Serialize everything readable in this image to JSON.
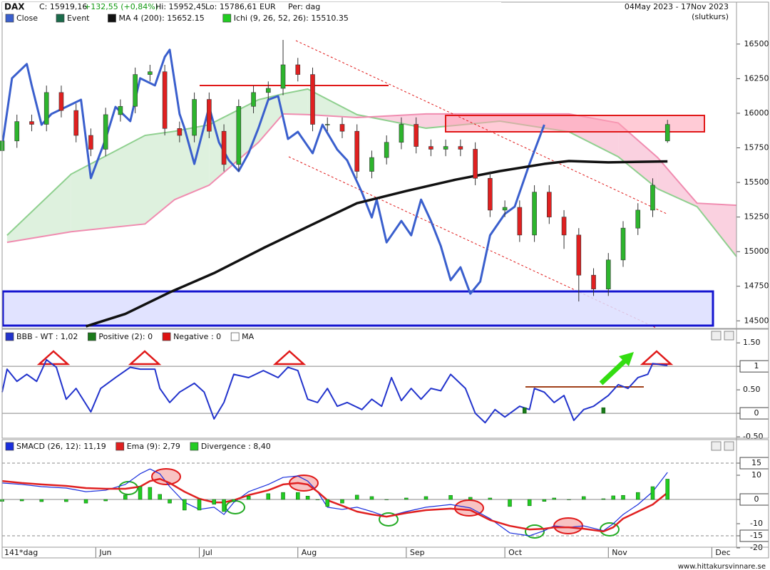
{
  "header": {
    "symbol": "DAX",
    "close": "C: 15919,16",
    "change": "+132,55 (+0,84%)",
    "high": "Hi: 15952,45",
    "low": "Lo: 15786,61",
    "currency": "EUR",
    "period": "Per: dag",
    "date_range": "04May 2023 - 17Nov 2023",
    "price_type": "(slutkurs)"
  },
  "footer": "www.hittakursvinnare.se",
  "chart_data": [
    {
      "type": "candlestick",
      "xlim": [
        0,
        149
      ],
      "ylim": [
        14450,
        16700
      ],
      "yticks": [
        14500,
        14750,
        15000,
        15250,
        15500,
        15750,
        16000,
        16250,
        16500
      ],
      "candles": {
        "up_color": "#2db52d",
        "down_color": "#e02020",
        "x": [
          0,
          3,
          6,
          9,
          12,
          15,
          18,
          21,
          24,
          27,
          30,
          33,
          36,
          39,
          42,
          45,
          48,
          51,
          54,
          57,
          60,
          63,
          66,
          69,
          72,
          75,
          78,
          81,
          84,
          87,
          90,
          93,
          96,
          99,
          102,
          105,
          108,
          111,
          114,
          117,
          120,
          123,
          126,
          129,
          132,
          135
        ],
        "open": [
          15730,
          15800,
          15940,
          15920,
          16150,
          16020,
          15840,
          15740,
          15990,
          16050,
          16280,
          16300,
          15890,
          15840,
          16100,
          15870,
          15630,
          16050,
          16150,
          16180,
          16350,
          16280,
          15920,
          15920,
          15870,
          15580,
          15680,
          15790,
          15920,
          15760,
          15740,
          15760,
          15740,
          15530,
          15300,
          15320,
          15120,
          15430,
          15250,
          15120,
          14830,
          14730,
          14940,
          15170,
          15300,
          15800
        ],
        "high": [
          15850,
          15990,
          15990,
          16200,
          16200,
          16070,
          15890,
          16040,
          16100,
          16330,
          16350,
          16350,
          15940,
          16150,
          16150,
          15920,
          16100,
          16200,
          16230,
          16530,
          16400,
          16330,
          15970,
          15970,
          15920,
          15730,
          15840,
          15970,
          15970,
          15810,
          15810,
          15810,
          15790,
          15580,
          15370,
          15370,
          15480,
          15480,
          15300,
          15170,
          14880,
          14990,
          15220,
          15350,
          15530,
          15952.45
        ],
        "low": [
          15680,
          15750,
          15870,
          15870,
          15970,
          15790,
          15690,
          15690,
          15940,
          16000,
          16230,
          15840,
          15790,
          15790,
          15820,
          15580,
          15580,
          16000,
          16100,
          16130,
          16230,
          15870,
          15870,
          15820,
          15530,
          15530,
          15630,
          15740,
          15710,
          15690,
          15690,
          15690,
          15480,
          15250,
          15250,
          15070,
          15070,
          15200,
          15020,
          14640,
          14680,
          14680,
          14890,
          15120,
          15250,
          15786.61
        ],
        "close": [
          15800,
          15940,
          15920,
          16150,
          16020,
          15840,
          15740,
          15990,
          16050,
          16280,
          16300,
          15890,
          15840,
          16100,
          15870,
          15630,
          16050,
          16150,
          16180,
          16350,
          16280,
          15920,
          15920,
          15870,
          15580,
          15680,
          15790,
          15920,
          15760,
          15740,
          15760,
          15740,
          15530,
          15300,
          15320,
          15120,
          15430,
          15250,
          15120,
          14830,
          14730,
          14940,
          15170,
          15300,
          15480,
          15919.16
        ]
      },
      "series": [
        {
          "name": "Close",
          "color": "#3a5fcd",
          "kind": "line",
          "line_width": 3,
          "x": [
            0,
            2,
            5,
            6,
            8,
            10,
            13,
            16,
            18,
            21,
            23,
            26,
            28,
            31,
            33,
            34,
            36,
            37,
            39,
            42,
            44,
            46,
            48,
            50,
            52,
            54,
            56,
            58,
            60,
            63,
            65,
            68,
            70,
            73,
            75,
            76,
            78,
            81,
            83,
            85,
            87,
            89,
            91,
            93,
            95,
            97,
            99,
            102,
            104,
            107,
            110
          ],
          "values": [
            15763,
            16253,
            16356,
            16201,
            15917,
            15995,
            16046,
            16098,
            15531,
            15814,
            16046,
            15943,
            16253,
            16201,
            16407,
            16459,
            15995,
            15892,
            15634,
            16046,
            15789,
            15660,
            15582,
            15711,
            15892,
            16098,
            16124,
            15814,
            15866,
            15711,
            15917,
            15737,
            15660,
            15428,
            15247,
            15376,
            15067,
            15222,
            15118,
            15376,
            15222,
            15041,
            14794,
            14887,
            14696,
            14783,
            15118,
            15273,
            15325,
            15634,
            15917
          ]
        },
        {
          "name": "Event",
          "color": "#1a6b4a"
        },
        {
          "name": "MA 4 (200): 15652.15",
          "color": "#111111",
          "kind": "line",
          "line_width": 3.5,
          "x": [
            17,
            25,
            34,
            43,
            53,
            62,
            72,
            82,
            92,
            101,
            110,
            115,
            123,
            135
          ],
          "values": [
            14460,
            14550,
            14706,
            14845,
            15026,
            15180,
            15350,
            15438,
            15520,
            15582,
            15634,
            15655,
            15645,
            15652.15
          ]
        },
        {
          "name": "Ichi (9, 26, 52, 26): 15510.35",
          "color": "#22cc22",
          "kind": "cloud",
          "a_color": "#8fd08f",
          "b_color": "#f08cb0",
          "up_fill": "#d8efd8",
          "down_fill": "#f9c9da",
          "x": [
            1,
            14,
            29,
            35,
            42,
            52,
            57,
            62,
            72,
            86,
            101,
            115,
            125,
            133,
            141,
            149
          ],
          "span_a": [
            15118,
            15560,
            15840,
            15870,
            15917,
            16098,
            16140,
            16175,
            15990,
            15892,
            15943,
            15866,
            15686,
            15454,
            15325,
            14964
          ],
          "span_b": [
            15067,
            15144,
            15200,
            15376,
            15480,
            15789,
            15995,
            15990,
            15969,
            15995,
            15995,
            15995,
            15930,
            15680,
            15350,
            15335
          ]
        }
      ]
    },
    {
      "type": "line",
      "xlim": [
        0,
        149
      ],
      "ylim": [
        -0.53,
        1.67
      ],
      "yticks": [
        {
          "value": 1.5,
          "label": "1.50"
        },
        1,
        {
          "value": 0.5,
          "label": "0.50"
        },
        0,
        {
          "value": -0.5,
          "label": "-0.50"
        }
      ],
      "ref_lines": [
        1,
        0
      ],
      "ref_dashed": [
        false,
        false
      ],
      "series": [
        {
          "name": "BBB - WT : 1,02",
          "color": "#2233cc",
          "kind": "line",
          "line_width": 2,
          "x": [
            0,
            1,
            3,
            5,
            7,
            9,
            11,
            13,
            15,
            18,
            20,
            23,
            26,
            28,
            31,
            32,
            34,
            36,
            39,
            41,
            43,
            45,
            47,
            50,
            53,
            56,
            58,
            60,
            62,
            64,
            66,
            68,
            70,
            73,
            75,
            77,
            79,
            81,
            83,
            85,
            87,
            89,
            91,
            94,
            96,
            98,
            100,
            102,
            105,
            107,
            108,
            110,
            112,
            114,
            116,
            118,
            120,
            123,
            125,
            127,
            129,
            131,
            132,
            134,
            135
          ],
          "values": [
            0.45,
            0.94,
            0.68,
            0.83,
            0.68,
            1.14,
            0.98,
            0.3,
            0.53,
            0.03,
            0.53,
            0.76,
            0.98,
            0.94,
            0.94,
            0.53,
            0.23,
            0.45,
            0.64,
            0.45,
            -0.12,
            0.23,
            0.83,
            0.76,
            0.91,
            0.76,
            0.98,
            0.91,
            0.3,
            0.23,
            0.53,
            0.15,
            0.23,
            0.08,
            0.3,
            0.15,
            0.76,
            0.27,
            0.53,
            0.3,
            0.53,
            0.48,
            0.83,
            0.53,
            0,
            -0.2,
            0.08,
            -0.08,
            0.15,
            0.08,
            0.53,
            0.45,
            0.23,
            0.38,
            -0.15,
            0.08,
            0.15,
            0.38,
            0.61,
            0.53,
            0.76,
            0.83,
            1.06,
            1.03,
            1.02
          ]
        },
        {
          "name": "Positive (2): 0",
          "color": "#1a7a1a",
          "kind": "bar",
          "x": [
            106,
            122
          ],
          "values": [
            0.12,
            0.12
          ]
        },
        {
          "name": "Negative : 0",
          "color": "#dd1111"
        },
        {
          "name": "MA",
          "color": "#ffffff"
        }
      ]
    },
    {
      "type": "line",
      "xlim": [
        0,
        149
      ],
      "ylim": [
        -20.3,
        20.3
      ],
      "yticks": [
        15,
        10,
        0,
        -10,
        -15,
        -20
      ],
      "ref_lines": [
        15,
        0,
        -15
      ],
      "ref_dashed": [
        true,
        false,
        true
      ],
      "x_label": "141*dag",
      "xticks": [
        {
          "value": 19,
          "label": "Jun"
        },
        {
          "value": 40,
          "label": "Jul"
        },
        {
          "value": 60,
          "label": "Aug"
        },
        {
          "value": 82,
          "label": "Sep"
        },
        {
          "value": 102,
          "label": "Oct"
        },
        {
          "value": 123,
          "label": "Nov"
        },
        {
          "value": 144,
          "label": "Dec"
        }
      ],
      "series": [
        {
          "name": "SMACD (26, 12): 11,19",
          "color": "#1a2fdd",
          "kind": "line",
          "line_width": 1.2,
          "x": [
            0,
            4,
            8,
            13,
            17,
            21,
            25,
            28,
            30,
            32,
            34,
            37,
            40,
            43,
            45,
            47,
            50,
            54,
            57,
            60,
            62,
            64,
            66,
            69,
            72,
            75,
            78,
            82,
            86,
            91,
            95,
            99,
            103,
            107,
            110,
            112,
            115,
            118,
            122,
            124,
            126,
            129,
            132,
            135
          ],
          "values": [
            6.8,
            6.2,
            5.3,
            4.7,
            3.2,
            3.8,
            6.2,
            10.6,
            12.6,
            10.6,
            5.3,
            -1.2,
            -4.1,
            -3.2,
            -6.2,
            -1.2,
            3.2,
            6.2,
            9.1,
            9.7,
            7.6,
            3.2,
            -3.2,
            -4.1,
            -3.2,
            -5,
            -7.1,
            -5,
            -3.2,
            -2.1,
            -3.5,
            -7.9,
            -13.8,
            -15,
            -12.9,
            -10.9,
            -11.5,
            -10.9,
            -12.9,
            -10,
            -6.2,
            -2.1,
            3.2,
            11.19
          ]
        },
        {
          "name": "Ema (9): 2,79",
          "color": "#e02020",
          "kind": "line",
          "line_width": 2.5,
          "x": [
            0,
            4,
            8,
            13,
            17,
            21,
            25,
            28,
            30,
            32,
            34,
            37,
            40,
            43,
            45,
            47,
            50,
            54,
            57,
            60,
            62,
            64,
            66,
            69,
            72,
            75,
            78,
            82,
            86,
            91,
            95,
            99,
            103,
            107,
            110,
            112,
            115,
            118,
            122,
            124,
            126,
            129,
            132,
            135
          ],
          "values": [
            7.6,
            6.8,
            6.2,
            5.6,
            4.7,
            4.4,
            4.4,
            5.3,
            7.6,
            8.5,
            6.8,
            3.2,
            0.3,
            -1.2,
            -1.2,
            -0.3,
            1.8,
            3.8,
            6.2,
            6.8,
            6.2,
            3.2,
            -0.3,
            -2.6,
            -5,
            -6.2,
            -7.1,
            -5.6,
            -4.4,
            -3.8,
            -4.4,
            -8.5,
            -10.9,
            -12.4,
            -12.1,
            -11.5,
            -11.5,
            -12.1,
            -13.2,
            -11.5,
            -7.9,
            -5,
            -2.1,
            2.79
          ]
        },
        {
          "name": "Divergence : 8,40",
          "color": "#22cc22",
          "kind": "bar",
          "x": [
            0,
            4,
            8,
            13,
            17,
            21,
            25,
            28,
            30,
            32,
            34,
            37,
            40,
            43,
            45,
            47,
            50,
            54,
            57,
            60,
            62,
            64,
            66,
            69,
            72,
            75,
            78,
            82,
            86,
            91,
            95,
            99,
            103,
            107,
            110,
            112,
            115,
            118,
            122,
            124,
            126,
            129,
            132,
            135
          ],
          "values": [
            -0.8,
            -0.6,
            -0.9,
            -0.9,
            -1.5,
            -0.6,
            1.8,
            5.3,
            5,
            2.1,
            -1.5,
            -4.4,
            -4.4,
            -2,
            -5,
            -0.9,
            1.4,
            2.4,
            2.9,
            2.9,
            1.4,
            0,
            -2.9,
            -1.5,
            1.8,
            1.2,
            0,
            0.6,
            1.2,
            1.7,
            0.9,
            0.6,
            -2.9,
            -2.6,
            -0.8,
            0.6,
            0,
            1.2,
            0.3,
            1.5,
            1.7,
            2.9,
            5.3,
            8.4
          ]
        }
      ]
    }
  ]
}
